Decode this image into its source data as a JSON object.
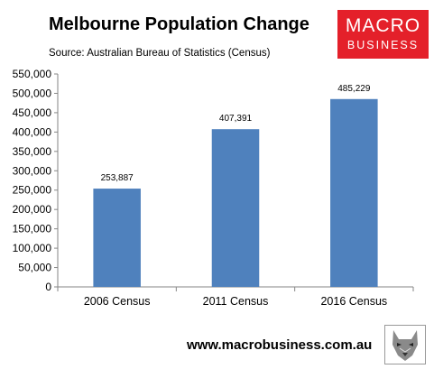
{
  "chart_data": {
    "type": "bar",
    "title": "Melbourne Population Change",
    "subtitle": "Source: Australian Bureau of Statistics (Census)",
    "categories": [
      "2006 Census",
      "2011 Census",
      "2016 Census"
    ],
    "values": [
      253887,
      407391,
      485229
    ],
    "data_labels": [
      "253,887",
      "407,391",
      "485,229"
    ],
    "ylim": [
      0,
      550000
    ],
    "yticks": [
      0,
      50000,
      100000,
      150000,
      200000,
      250000,
      300000,
      350000,
      400000,
      450000,
      500000,
      550000
    ],
    "ytick_labels": [
      "0",
      "50,000",
      "100,000",
      "150,000",
      "200,000",
      "250,000",
      "300,000",
      "350,000",
      "400,000",
      "450,000",
      "500,000",
      "550,000"
    ],
    "xlabel": "",
    "ylabel": "",
    "grid": false,
    "bar_color": "#4f81bd"
  },
  "logo": {
    "line1": "MACRO",
    "line2": "BUSINESS",
    "color": "#e4202a"
  },
  "footer": {
    "url": "www.macrobusiness.com.au"
  },
  "icons": {
    "footer_image": "wolf-icon"
  }
}
